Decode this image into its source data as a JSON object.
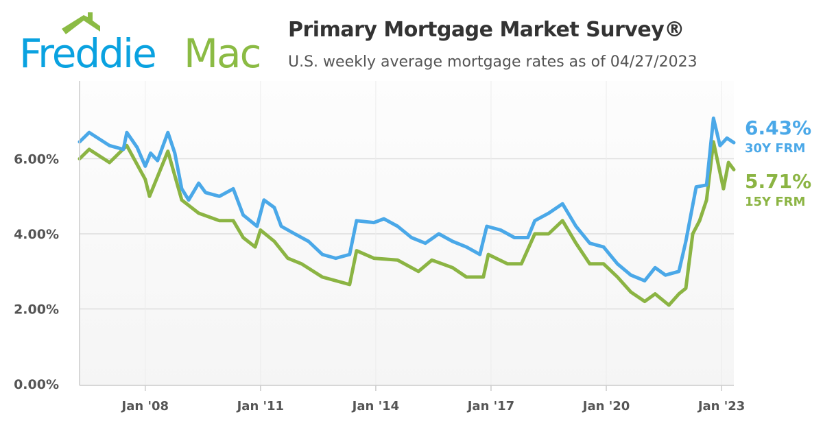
{
  "logo": {
    "text_part1": "Freddie",
    "text_part2": "Mac",
    "blue": "#0aa2e0",
    "green": "#8bbb44"
  },
  "header": {
    "title": "Primary Mortgage Market Survey®",
    "subtitle": "U.S. weekly average mortgage rates as of 04/27/2023"
  },
  "latest": {
    "rate30": "6.43%",
    "label30": "30Y FRM",
    "rate15": "5.71%",
    "label15": "15Y FRM"
  },
  "chart_data": {
    "type": "line",
    "title": "Primary Mortgage Market Survey®",
    "xlabel": "",
    "ylabel": "",
    "xlim": [
      2006.29,
      2023.32
    ],
    "ylim": [
      0,
      8
    ],
    "yticks": [
      0,
      2,
      4,
      6
    ],
    "ytick_labels": [
      "0.00%",
      "2.00%",
      "4.00%",
      "6.00%"
    ],
    "xticks": [
      2008,
      2011,
      2014,
      2017,
      2020,
      2023
    ],
    "xtick_labels": [
      "Jan '08",
      "Jan '11",
      "Jan '14",
      "Jan '17",
      "Jan '20",
      "Jan '23"
    ],
    "grid": true,
    "series": [
      {
        "name": "30Y FRM",
        "color": "#4aa8e8",
        "points": [
          [
            2006.29,
            6.45
          ],
          [
            2006.54,
            6.7
          ],
          [
            2007.07,
            6.35
          ],
          [
            2007.43,
            6.25
          ],
          [
            2007.52,
            6.7
          ],
          [
            2007.79,
            6.3
          ],
          [
            2008.0,
            5.8
          ],
          [
            2008.14,
            6.15
          ],
          [
            2008.32,
            5.95
          ],
          [
            2008.59,
            6.7
          ],
          [
            2008.77,
            6.15
          ],
          [
            2008.95,
            5.2
          ],
          [
            2009.13,
            4.9
          ],
          [
            2009.39,
            5.35
          ],
          [
            2009.57,
            5.1
          ],
          [
            2009.93,
            5.0
          ],
          [
            2010.29,
            5.2
          ],
          [
            2010.55,
            4.5
          ],
          [
            2010.91,
            4.2
          ],
          [
            2011.09,
            4.9
          ],
          [
            2011.36,
            4.7
          ],
          [
            2011.54,
            4.2
          ],
          [
            2011.89,
            4.0
          ],
          [
            2012.25,
            3.8
          ],
          [
            2012.61,
            3.45
          ],
          [
            2012.96,
            3.35
          ],
          [
            2013.32,
            3.45
          ],
          [
            2013.5,
            4.35
          ],
          [
            2013.95,
            4.3
          ],
          [
            2014.21,
            4.4
          ],
          [
            2014.57,
            4.2
          ],
          [
            2014.93,
            3.9
          ],
          [
            2015.29,
            3.75
          ],
          [
            2015.64,
            4.0
          ],
          [
            2016.0,
            3.8
          ],
          [
            2016.36,
            3.65
          ],
          [
            2016.71,
            3.45
          ],
          [
            2016.89,
            4.2
          ],
          [
            2017.25,
            4.1
          ],
          [
            2017.61,
            3.9
          ],
          [
            2017.96,
            3.9
          ],
          [
            2018.14,
            4.35
          ],
          [
            2018.5,
            4.55
          ],
          [
            2018.86,
            4.8
          ],
          [
            2019.21,
            4.2
          ],
          [
            2019.57,
            3.75
          ],
          [
            2019.93,
            3.65
          ],
          [
            2020.29,
            3.2
          ],
          [
            2020.64,
            2.9
          ],
          [
            2021.0,
            2.75
          ],
          [
            2021.27,
            3.1
          ],
          [
            2021.54,
            2.9
          ],
          [
            2021.89,
            3.0
          ],
          [
            2022.07,
            3.8
          ],
          [
            2022.34,
            5.25
          ],
          [
            2022.61,
            5.3
          ],
          [
            2022.79,
            7.08
          ],
          [
            2022.96,
            6.35
          ],
          [
            2023.14,
            6.55
          ],
          [
            2023.32,
            6.43
          ]
        ]
      },
      {
        "name": "15Y FRM",
        "color": "#8bb443",
        "points": [
          [
            2006.29,
            6.0
          ],
          [
            2006.54,
            6.25
          ],
          [
            2007.07,
            5.9
          ],
          [
            2007.52,
            6.35
          ],
          [
            2008.0,
            5.45
          ],
          [
            2008.11,
            5.0
          ],
          [
            2008.59,
            6.2
          ],
          [
            2008.95,
            4.9
          ],
          [
            2009.39,
            4.55
          ],
          [
            2009.93,
            4.35
          ],
          [
            2010.29,
            4.35
          ],
          [
            2010.55,
            3.9
          ],
          [
            2010.86,
            3.65
          ],
          [
            2011.0,
            4.1
          ],
          [
            2011.36,
            3.8
          ],
          [
            2011.71,
            3.35
          ],
          [
            2012.07,
            3.2
          ],
          [
            2012.61,
            2.85
          ],
          [
            2012.96,
            2.75
          ],
          [
            2013.32,
            2.65
          ],
          [
            2013.5,
            3.55
          ],
          [
            2013.95,
            3.35
          ],
          [
            2014.57,
            3.3
          ],
          [
            2015.11,
            3.0
          ],
          [
            2015.46,
            3.3
          ],
          [
            2016.0,
            3.1
          ],
          [
            2016.36,
            2.85
          ],
          [
            2016.8,
            2.85
          ],
          [
            2016.93,
            3.45
          ],
          [
            2017.43,
            3.2
          ],
          [
            2017.79,
            3.2
          ],
          [
            2018.14,
            4.0
          ],
          [
            2018.5,
            4.0
          ],
          [
            2018.86,
            4.35
          ],
          [
            2019.21,
            3.75
          ],
          [
            2019.57,
            3.2
          ],
          [
            2019.93,
            3.2
          ],
          [
            2020.29,
            2.85
          ],
          [
            2020.64,
            2.45
          ],
          [
            2021.0,
            2.2
          ],
          [
            2021.27,
            2.4
          ],
          [
            2021.63,
            2.1
          ],
          [
            2021.89,
            2.4
          ],
          [
            2022.07,
            2.55
          ],
          [
            2022.25,
            4.0
          ],
          [
            2022.43,
            4.35
          ],
          [
            2022.61,
            4.9
          ],
          [
            2022.79,
            6.45
          ],
          [
            2023.05,
            5.2
          ],
          [
            2023.18,
            5.9
          ],
          [
            2023.32,
            5.71
          ]
        ]
      }
    ]
  }
}
